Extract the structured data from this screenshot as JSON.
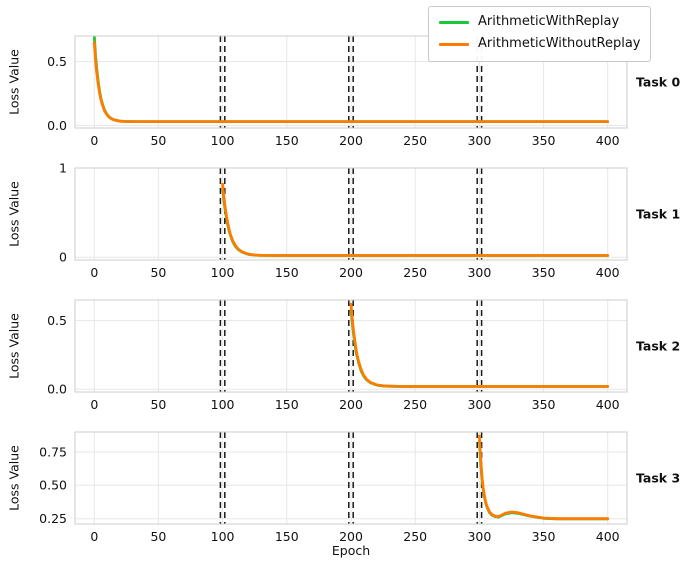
{
  "figure": {
    "background": "#ffffff"
  },
  "legend": {
    "items": [
      {
        "label": "ArithmeticWithReplay",
        "color": "#1ac938"
      },
      {
        "label": "ArithmeticWithoutReplay",
        "color": "#ff7c00"
      }
    ]
  },
  "chart_data": {
    "type": "line",
    "xlabel": "Epoch",
    "x_ticks": [
      0,
      50,
      100,
      150,
      200,
      250,
      300,
      350,
      400
    ],
    "xlim": [
      -15,
      415
    ],
    "task_boundaries": [
      100,
      200,
      300
    ],
    "legend_position": "upper right",
    "grid": true,
    "colors": {
      "with_replay": "#1ac938",
      "without_replay": "#ff7c00",
      "boundary_line": "#1a1a1a",
      "grid": "#e7e7e7",
      "spine": "#cccccc"
    },
    "subplots": [
      {
        "task_label": "Task 0",
        "ylabel": "Loss Value",
        "ylim": [
          -0.02,
          0.7
        ],
        "y_ticks": [
          0.0,
          0.5
        ],
        "y_tick_labels": [
          "0.0",
          "0.5"
        ],
        "series": [
          {
            "name": "ArithmeticWithReplay",
            "color": "#1ac938",
            "x": [
              0,
              1,
              2,
              3,
              4,
              5,
              6,
              8,
              10,
              12,
              15,
              20,
              25,
              30,
              40,
              60,
              100,
              150,
              200,
              250,
              300,
              350,
              400
            ],
            "y": [
              0.7,
              0.55,
              0.44,
              0.35,
              0.28,
              0.22,
              0.18,
              0.12,
              0.085,
              0.063,
              0.046,
              0.034,
              0.031,
              0.03,
              0.03,
              0.03,
              0.03,
              0.03,
              0.03,
              0.03,
              0.03,
              0.03,
              0.03
            ]
          },
          {
            "name": "ArithmeticWithoutReplay",
            "color": "#ff7c00",
            "x": [
              0,
              1,
              2,
              3,
              4,
              5,
              6,
              8,
              10,
              12,
              15,
              20,
              25,
              30,
              40,
              60,
              100,
              150,
              200,
              250,
              300,
              350,
              400
            ],
            "y": [
              0.65,
              0.51,
              0.41,
              0.33,
              0.26,
              0.21,
              0.17,
              0.115,
              0.082,
              0.061,
              0.045,
              0.033,
              0.031,
              0.03,
              0.03,
              0.03,
              0.03,
              0.03,
              0.03,
              0.03,
              0.03,
              0.03,
              0.03
            ]
          }
        ]
      },
      {
        "task_label": "Task 1",
        "ylabel": "Loss Value",
        "ylim": [
          -0.03,
          1.0
        ],
        "y_ticks": [
          0,
          1
        ],
        "y_tick_labels": [
          "0",
          "1"
        ],
        "series": [
          {
            "name": "ArithmeticWithReplay",
            "color": "#1ac938",
            "x": [
              100,
              101,
              102,
              103,
              104,
              105,
              106,
              108,
              110,
              112,
              115,
              120,
              125,
              130,
              140,
              160,
              200,
              250,
              300,
              350,
              400
            ],
            "y": [
              0.78,
              0.64,
              0.53,
              0.44,
              0.36,
              0.3,
              0.25,
              0.17,
              0.12,
              0.09,
              0.06,
              0.034,
              0.025,
              0.022,
              0.02,
              0.02,
              0.02,
              0.02,
              0.02,
              0.02,
              0.02
            ]
          },
          {
            "name": "ArithmeticWithoutReplay",
            "color": "#ff7c00",
            "x": [
              100,
              101,
              102,
              103,
              104,
              105,
              106,
              108,
              110,
              112,
              115,
              120,
              125,
              130,
              140,
              160,
              200,
              250,
              300,
              350,
              400
            ],
            "y": [
              0.82,
              0.67,
              0.56,
              0.46,
              0.38,
              0.32,
              0.26,
              0.18,
              0.13,
              0.095,
              0.062,
              0.036,
              0.026,
              0.022,
              0.02,
              0.02,
              0.02,
              0.02,
              0.02,
              0.02,
              0.02
            ]
          }
        ]
      },
      {
        "task_label": "Task 2",
        "ylabel": "Loss Value",
        "ylim": [
          -0.02,
          0.65
        ],
        "y_ticks": [
          0.0,
          0.5
        ],
        "y_tick_labels": [
          "0.0",
          "0.5"
        ],
        "series": [
          {
            "name": "ArithmeticWithReplay",
            "color": "#1ac938",
            "x": [
              200,
              201,
              202,
              203,
              204,
              205,
              206,
              208,
              210,
              212,
              215,
              220,
              225,
              230,
              240,
              260,
              300,
              350,
              400
            ],
            "y": [
              0.58,
              0.48,
              0.4,
              0.33,
              0.27,
              0.23,
              0.19,
              0.13,
              0.095,
              0.07,
              0.048,
              0.03,
              0.024,
              0.022,
              0.02,
              0.02,
              0.02,
              0.02,
              0.02
            ]
          },
          {
            "name": "ArithmeticWithoutReplay",
            "color": "#ff7c00",
            "x": [
              200,
              201,
              202,
              203,
              204,
              205,
              206,
              208,
              210,
              212,
              215,
              220,
              225,
              230,
              240,
              260,
              300,
              350,
              400
            ],
            "y": [
              0.62,
              0.51,
              0.42,
              0.35,
              0.29,
              0.24,
              0.2,
              0.14,
              0.1,
              0.074,
              0.051,
              0.032,
              0.025,
              0.022,
              0.02,
              0.02,
              0.02,
              0.02,
              0.02
            ]
          }
        ]
      },
      {
        "task_label": "Task 3",
        "ylabel": "Loss Value",
        "ylim": [
          0.21,
          0.9
        ],
        "y_ticks": [
          0.25,
          0.5,
          0.75
        ],
        "y_tick_labels": [
          "0.25",
          "0.50",
          "0.75"
        ],
        "series": [
          {
            "name": "ArithmeticWithReplay",
            "color": "#1ac938",
            "x": [
              300,
              301,
              302,
              303,
              304,
              305,
              306,
              308,
              310,
              312,
              315,
              320,
              325,
              330,
              340,
              350,
              360,
              380,
              400
            ],
            "y": [
              0.83,
              0.67,
              0.55,
              0.47,
              0.41,
              0.365,
              0.335,
              0.295,
              0.276,
              0.266,
              0.262,
              0.285,
              0.295,
              0.29,
              0.268,
              0.253,
              0.249,
              0.249,
              0.249
            ]
          },
          {
            "name": "ArithmeticWithoutReplay",
            "color": "#ff7c00",
            "x": [
              300,
              301,
              302,
              303,
              304,
              305,
              306,
              308,
              310,
              312,
              315,
              320,
              325,
              330,
              340,
              350,
              360,
              380,
              400
            ],
            "y": [
              0.87,
              0.7,
              0.57,
              0.48,
              0.42,
              0.37,
              0.34,
              0.3,
              0.28,
              0.27,
              0.265,
              0.29,
              0.3,
              0.295,
              0.27,
              0.255,
              0.25,
              0.25,
              0.25
            ]
          }
        ]
      }
    ]
  }
}
